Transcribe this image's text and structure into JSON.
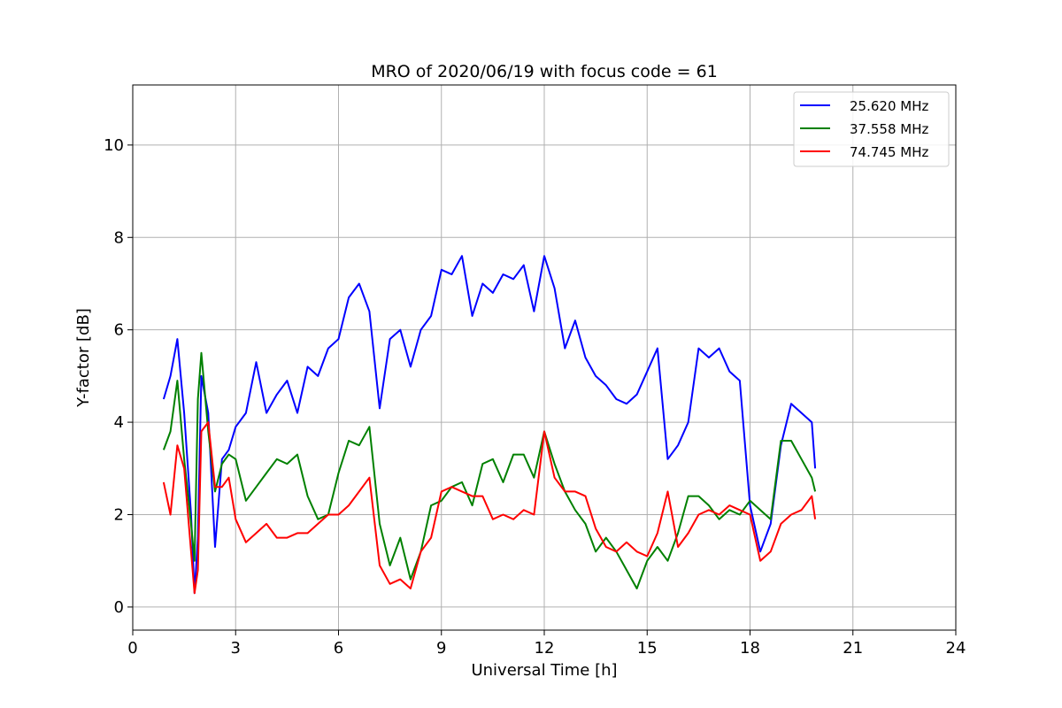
{
  "chart_data": {
    "type": "line",
    "title": "MRO of 2020/06/19 with focus code = 61",
    "xlabel": "Universal Time [h]",
    "ylabel": "Y-factor [dB]",
    "xlim": [
      0,
      24
    ],
    "ylim": [
      -0.5,
      11.3
    ],
    "xticks": [
      0,
      3,
      6,
      9,
      12,
      15,
      18,
      21,
      24
    ],
    "yticks": [
      0,
      2,
      4,
      6,
      8,
      10
    ],
    "grid": true,
    "legend_position": "top-right",
    "series": [
      {
        "name": "25.620 MHz",
        "color": "#0000ff",
        "x": [
          0.9,
          1.1,
          1.3,
          1.5,
          1.7,
          1.8,
          1.9,
          2.0,
          2.2,
          2.4,
          2.6,
          2.8,
          3.0,
          3.3,
          3.6,
          3.9,
          4.2,
          4.5,
          4.8,
          5.1,
          5.4,
          5.7,
          6.0,
          6.3,
          6.6,
          6.9,
          7.2,
          7.5,
          7.8,
          8.1,
          8.4,
          8.7,
          9.0,
          9.3,
          9.6,
          9.9,
          10.2,
          10.5,
          10.8,
          11.1,
          11.4,
          11.7,
          12.0,
          12.3,
          12.6,
          12.9,
          13.2,
          13.5,
          13.8,
          14.1,
          14.4,
          14.7,
          15.0,
          15.3,
          15.6,
          15.9,
          16.2,
          16.5,
          16.8,
          17.1,
          17.4,
          17.7,
          18.0,
          18.3,
          18.6,
          18.9,
          19.2,
          19.5,
          19.8,
          19.9
        ],
        "y": [
          4.5,
          5.0,
          5.8,
          4.2,
          2.0,
          0.3,
          1.5,
          5.0,
          4.2,
          1.3,
          3.2,
          3.4,
          3.9,
          4.2,
          5.3,
          4.2,
          4.6,
          4.9,
          4.2,
          5.2,
          5.0,
          5.6,
          5.8,
          6.7,
          7.0,
          6.4,
          4.3,
          5.8,
          6.0,
          5.2,
          6.0,
          6.3,
          7.3,
          7.2,
          7.6,
          6.3,
          7.0,
          6.8,
          7.2,
          7.1,
          7.4,
          6.4,
          7.6,
          6.9,
          5.6,
          6.2,
          5.4,
          5.0,
          4.8,
          4.5,
          4.4,
          4.6,
          5.1,
          5.6,
          3.2,
          3.5,
          4.0,
          5.6,
          5.4,
          5.6,
          5.1,
          4.9,
          2.2,
          1.2,
          1.8,
          3.5,
          4.4,
          4.2,
          4.0,
          3.0
        ]
      },
      {
        "name": "37.558 MHz",
        "color": "#008000",
        "x": [
          0.9,
          1.1,
          1.3,
          1.5,
          1.7,
          1.8,
          1.9,
          2.0,
          2.2,
          2.4,
          2.6,
          2.8,
          3.0,
          3.3,
          3.6,
          3.9,
          4.2,
          4.5,
          4.8,
          5.1,
          5.4,
          5.7,
          6.0,
          6.3,
          6.6,
          6.9,
          7.2,
          7.5,
          7.8,
          8.1,
          8.4,
          8.7,
          9.0,
          9.3,
          9.6,
          9.9,
          10.2,
          10.5,
          10.8,
          11.1,
          11.4,
          11.7,
          12.0,
          12.3,
          12.6,
          12.9,
          13.2,
          13.5,
          13.8,
          14.1,
          14.4,
          14.7,
          15.0,
          15.3,
          15.6,
          15.9,
          16.2,
          16.5,
          16.8,
          17.1,
          17.4,
          17.7,
          18.0,
          18.3,
          18.6,
          18.9,
          19.2,
          19.5,
          19.8,
          19.9
        ],
        "y": [
          3.4,
          3.8,
          4.9,
          3.2,
          1.8,
          1.0,
          4.5,
          5.5,
          3.8,
          2.5,
          3.1,
          3.3,
          3.2,
          2.3,
          2.6,
          2.9,
          3.2,
          3.1,
          3.3,
          2.4,
          1.9,
          2.0,
          2.9,
          3.6,
          3.5,
          3.9,
          1.8,
          0.9,
          1.5,
          0.6,
          1.2,
          2.2,
          2.3,
          2.6,
          2.7,
          2.2,
          3.1,
          3.2,
          2.7,
          3.3,
          3.3,
          2.8,
          3.8,
          3.1,
          2.5,
          2.1,
          1.8,
          1.2,
          1.5,
          1.2,
          0.8,
          0.4,
          1.0,
          1.3,
          1.0,
          1.6,
          2.4,
          2.4,
          2.2,
          1.9,
          2.1,
          2.0,
          2.3,
          2.1,
          1.9,
          3.6,
          3.6,
          3.2,
          2.8,
          2.5
        ]
      },
      {
        "name": "74.745 MHz",
        "color": "#ff0000",
        "x": [
          0.9,
          1.1,
          1.3,
          1.5,
          1.7,
          1.8,
          1.9,
          2.0,
          2.2,
          2.4,
          2.6,
          2.8,
          3.0,
          3.3,
          3.6,
          3.9,
          4.2,
          4.5,
          4.8,
          5.1,
          5.4,
          5.7,
          6.0,
          6.3,
          6.6,
          6.9,
          7.2,
          7.5,
          7.8,
          8.1,
          8.4,
          8.7,
          9.0,
          9.3,
          9.6,
          9.9,
          10.2,
          10.5,
          10.8,
          11.1,
          11.4,
          11.7,
          12.0,
          12.3,
          12.6,
          12.9,
          13.2,
          13.5,
          13.8,
          14.1,
          14.4,
          14.7,
          15.0,
          15.3,
          15.6,
          15.9,
          16.2,
          16.5,
          16.8,
          17.1,
          17.4,
          17.7,
          18.0,
          18.3,
          18.6,
          18.9,
          19.2,
          19.5,
          19.8,
          19.9
        ],
        "y": [
          2.7,
          2.0,
          3.5,
          3.0,
          1.2,
          0.3,
          0.8,
          3.8,
          4.0,
          2.6,
          2.6,
          2.8,
          1.9,
          1.4,
          1.6,
          1.8,
          1.5,
          1.5,
          1.6,
          1.6,
          1.8,
          2.0,
          2.0,
          2.2,
          2.5,
          2.8,
          0.9,
          0.5,
          0.6,
          0.4,
          1.2,
          1.5,
          2.5,
          2.6,
          2.5,
          2.4,
          2.4,
          1.9,
          2.0,
          1.9,
          2.1,
          2.0,
          3.8,
          2.8,
          2.5,
          2.5,
          2.4,
          1.7,
          1.3,
          1.2,
          1.4,
          1.2,
          1.1,
          1.6,
          2.5,
          1.3,
          1.6,
          2.0,
          2.1,
          2.0,
          2.2,
          2.1,
          2.0,
          1.0,
          1.2,
          1.8,
          2.0,
          2.1,
          2.4,
          1.9
        ]
      }
    ]
  }
}
